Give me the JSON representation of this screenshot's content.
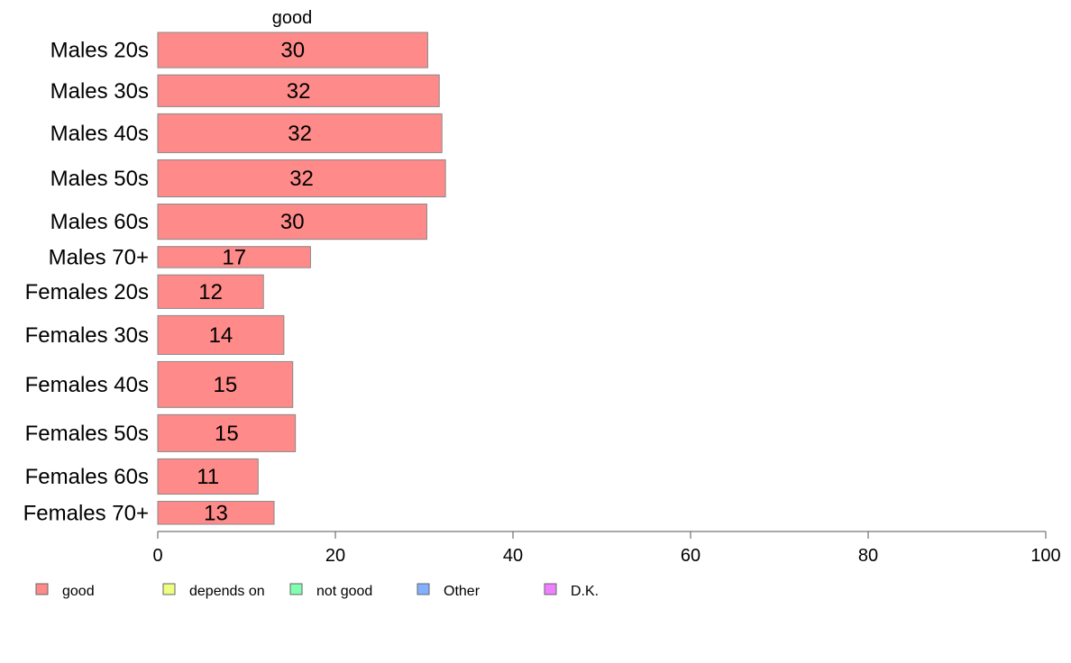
{
  "chart_data": {
    "type": "bar",
    "orientation": "horizontal",
    "column_title": "good",
    "categories": [
      "Males 20s",
      "Males 30s",
      "Males 40s",
      "Males 50s",
      "Males 60s",
      "Males 70+",
      "Females 20s",
      "Females 30s",
      "Females 40s",
      "Females 50s",
      "Females 60s",
      "Females 70+"
    ],
    "series": [
      {
        "name": "good",
        "color": "#ff8a8a",
        "values": [
          30.4,
          31.7,
          32.0,
          32.4,
          30.3,
          17.2,
          11.9,
          14.2,
          15.2,
          15.5,
          11.3,
          13.1
        ],
        "labels": [
          "30",
          "32",
          "32",
          "32",
          "30",
          "17",
          "12",
          "14",
          "15",
          "15",
          "11",
          "13"
        ]
      }
    ],
    "xlim": [
      0,
      100
    ],
    "xticks": [
      "0",
      "20",
      "40",
      "60",
      "80",
      "100"
    ],
    "legend": {
      "placement": "bottom",
      "items": [
        {
          "name": "good",
          "color": "#ff8a8a"
        },
        {
          "name": "depends on",
          "color": "#eeff80"
        },
        {
          "name": "not good",
          "color": "#80ffb0"
        },
        {
          "name": "Other",
          "color": "#80b0ff"
        },
        {
          "name": "D.K.",
          "color": "#ee80ff"
        }
      ]
    },
    "bar_weights": [
      40,
      36,
      44,
      42,
      40,
      24,
      38,
      44,
      52,
      42,
      40,
      26
    ]
  }
}
